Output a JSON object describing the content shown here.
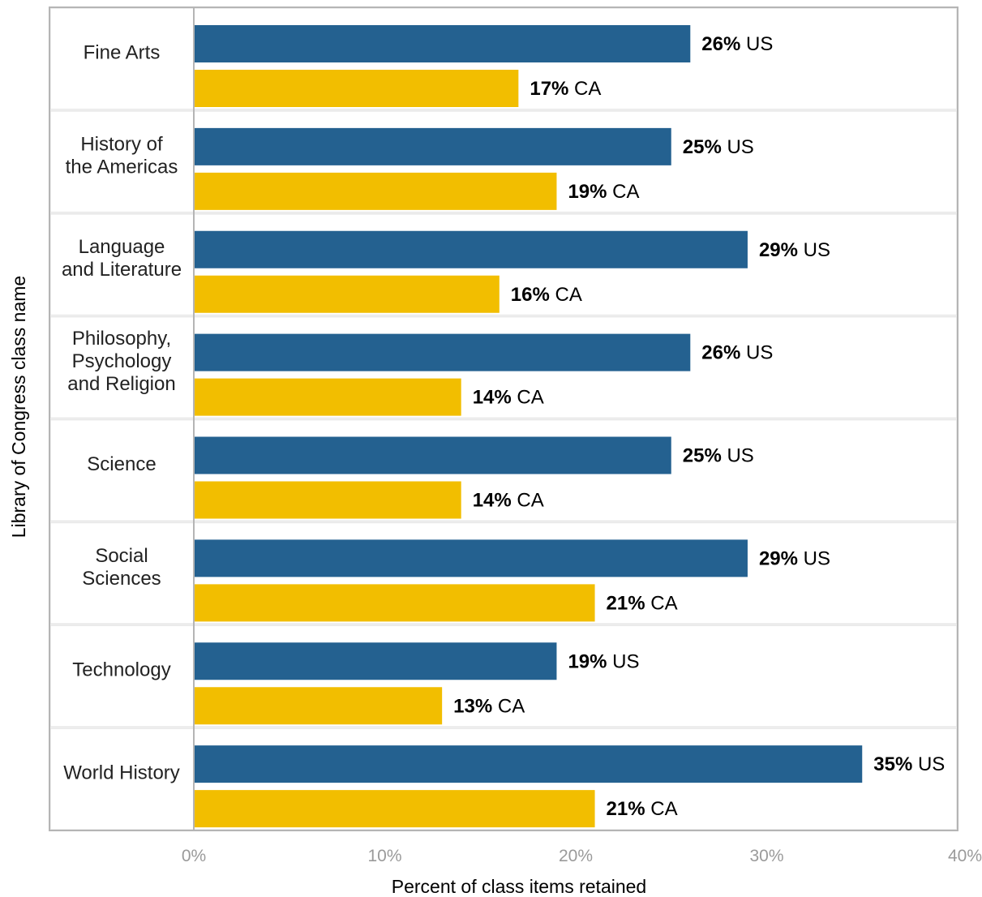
{
  "chart_data": {
    "type": "bar",
    "orientation": "horizontal",
    "xlabel": "Percent of class items retained",
    "ylabel": "Library of Congress class name",
    "xlim": [
      0,
      40
    ],
    "x_ticks": [
      "0%",
      "10%",
      "20%",
      "30%",
      "40%"
    ],
    "categories": [
      [
        "Fine Arts"
      ],
      [
        "History of",
        "the Americas"
      ],
      [
        "Language",
        "and Literature"
      ],
      [
        "Philosophy,",
        "Psychology",
        "and Religion"
      ],
      [
        "Science"
      ],
      [
        "Social",
        "Sciences"
      ],
      [
        "Technology"
      ],
      [
        "World History"
      ]
    ],
    "series": [
      {
        "name": "US",
        "color": "#246190",
        "values": [
          26,
          25,
          29,
          26,
          25,
          29,
          19,
          35
        ],
        "labels": [
          "26%",
          "25%",
          "29%",
          "26%",
          "25%",
          "29%",
          "19%",
          "35%"
        ]
      },
      {
        "name": "CA",
        "color": "#f2be00",
        "values": [
          17,
          19,
          16,
          14,
          14,
          21,
          13,
          21
        ],
        "labels": [
          "17%",
          "19%",
          "16%",
          "14%",
          "14%",
          "21%",
          "13%",
          "21%"
        ]
      }
    ],
    "grid": false,
    "legend": "none"
  }
}
